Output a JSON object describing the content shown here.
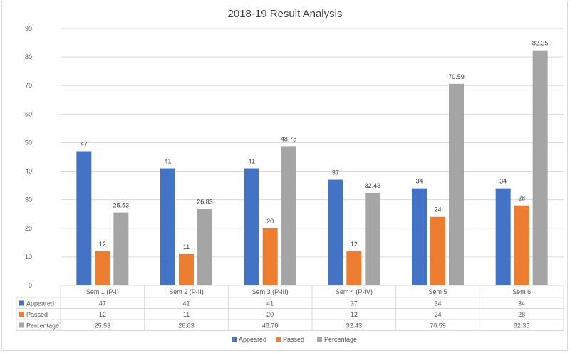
{
  "chart_data": {
    "type": "bar",
    "title": "2018-19 Result Analysis",
    "xlabel": "",
    "ylabel": "",
    "ylim": [
      0,
      90
    ],
    "yticks": [
      0,
      10,
      20,
      30,
      40,
      50,
      60,
      70,
      80,
      90
    ],
    "grid": true,
    "legend_position": "bottom",
    "data_table": true,
    "categories": [
      "Sem 1 (P-I)",
      "Sem 2 (P-II)",
      "Sem 3 (P-III)",
      "Sem 4 (P-IV)",
      "Sem 5",
      "Sem 6"
    ],
    "series": [
      {
        "name": "Appeared",
        "color": "#4472c4",
        "values": [
          47,
          41,
          41,
          37,
          34,
          34
        ],
        "labels": [
          "47",
          "41",
          "41",
          "37",
          "34",
          "34"
        ]
      },
      {
        "name": "Passed",
        "color": "#ed7d31",
        "values": [
          12,
          11,
          20,
          12,
          24,
          28
        ],
        "labels": [
          "12",
          "11",
          "20",
          "12",
          "24",
          "28"
        ]
      },
      {
        "name": "Percentage",
        "color": "#a5a5a5",
        "values": [
          25.53,
          26.83,
          48.78,
          32.43,
          70.59,
          82.35
        ],
        "labels": [
          "25.53",
          "26.83",
          "48.78",
          "32.43",
          "70.59",
          "82.35"
        ]
      }
    ]
  }
}
